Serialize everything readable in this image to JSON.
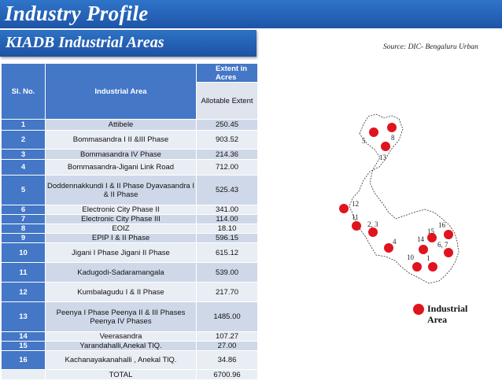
{
  "header": {
    "title": "Industry Profile",
    "subtitle": "KIADB Industrial Areas",
    "source": "Source: DIC- Bengaluru Urban"
  },
  "table": {
    "col_slno": "Sl. No.",
    "col_area": "Industrial Area",
    "col_extent": "Extent in Acres",
    "col_allotable": "Allotable Extent",
    "rows": [
      {
        "no": "1",
        "area": "Attibele",
        "extent": "250.45"
      },
      {
        "no": "2",
        "area": "Bommasandra I  II &III Phase",
        "extent": "903.52"
      },
      {
        "no": "3",
        "area": "Bommasandra IV Phase",
        "extent": "214.36"
      },
      {
        "no": "4",
        "area": "Bommasandra-Jigani Link Road",
        "extent": "712.00"
      },
      {
        "no": "5",
        "area": "Doddennakkundi I & II Phase Dyavasandra I & II Phase",
        "extent": "525.43"
      },
      {
        "no": "6",
        "area": "Electronic City Phase II",
        "extent": "341.00"
      },
      {
        "no": "7",
        "area": "Electronic City Phase III",
        "extent": "114.00"
      },
      {
        "no": "8",
        "area": "EOIZ",
        "extent": "18.10"
      },
      {
        "no": "9",
        "area": "EPIP I & II Phase",
        "extent": "596.15"
      },
      {
        "no": "10",
        "area": "Jigani I Phase                       Jigani II Phase",
        "extent": "615.12"
      },
      {
        "no": "11",
        "area": "Kadugodi-Sadaramangala",
        "extent": "539.00"
      },
      {
        "no": "12",
        "area": "Kumbalagudu I & II Phase",
        "extent": "217.70"
      },
      {
        "no": "13",
        "area": "Peenya I Phase                    Peenya II & III Phases           Peenya  IV Phases",
        "extent": "1485.00"
      },
      {
        "no": "14",
        "area": "Veerasandra",
        "extent": "107.27"
      },
      {
        "no": "15",
        "area": "Yarandahalli,Anekal TlQ.",
        "extent": "27.00"
      },
      {
        "no": "16",
        "area": "Kachanayakanahalli , Anekal TlQ.",
        "extent": "34.86"
      }
    ],
    "total_label": "TOTAL",
    "total_value": "6700.96"
  },
  "map": {
    "labels": [
      "5",
      "8",
      "13",
      "12",
      "11",
      "2, 3",
      "16",
      "15",
      "4",
      "14",
      "6, 7",
      "10",
      "1"
    ],
    "legend": "Industrial Area",
    "marker_color": "#e0141e"
  }
}
